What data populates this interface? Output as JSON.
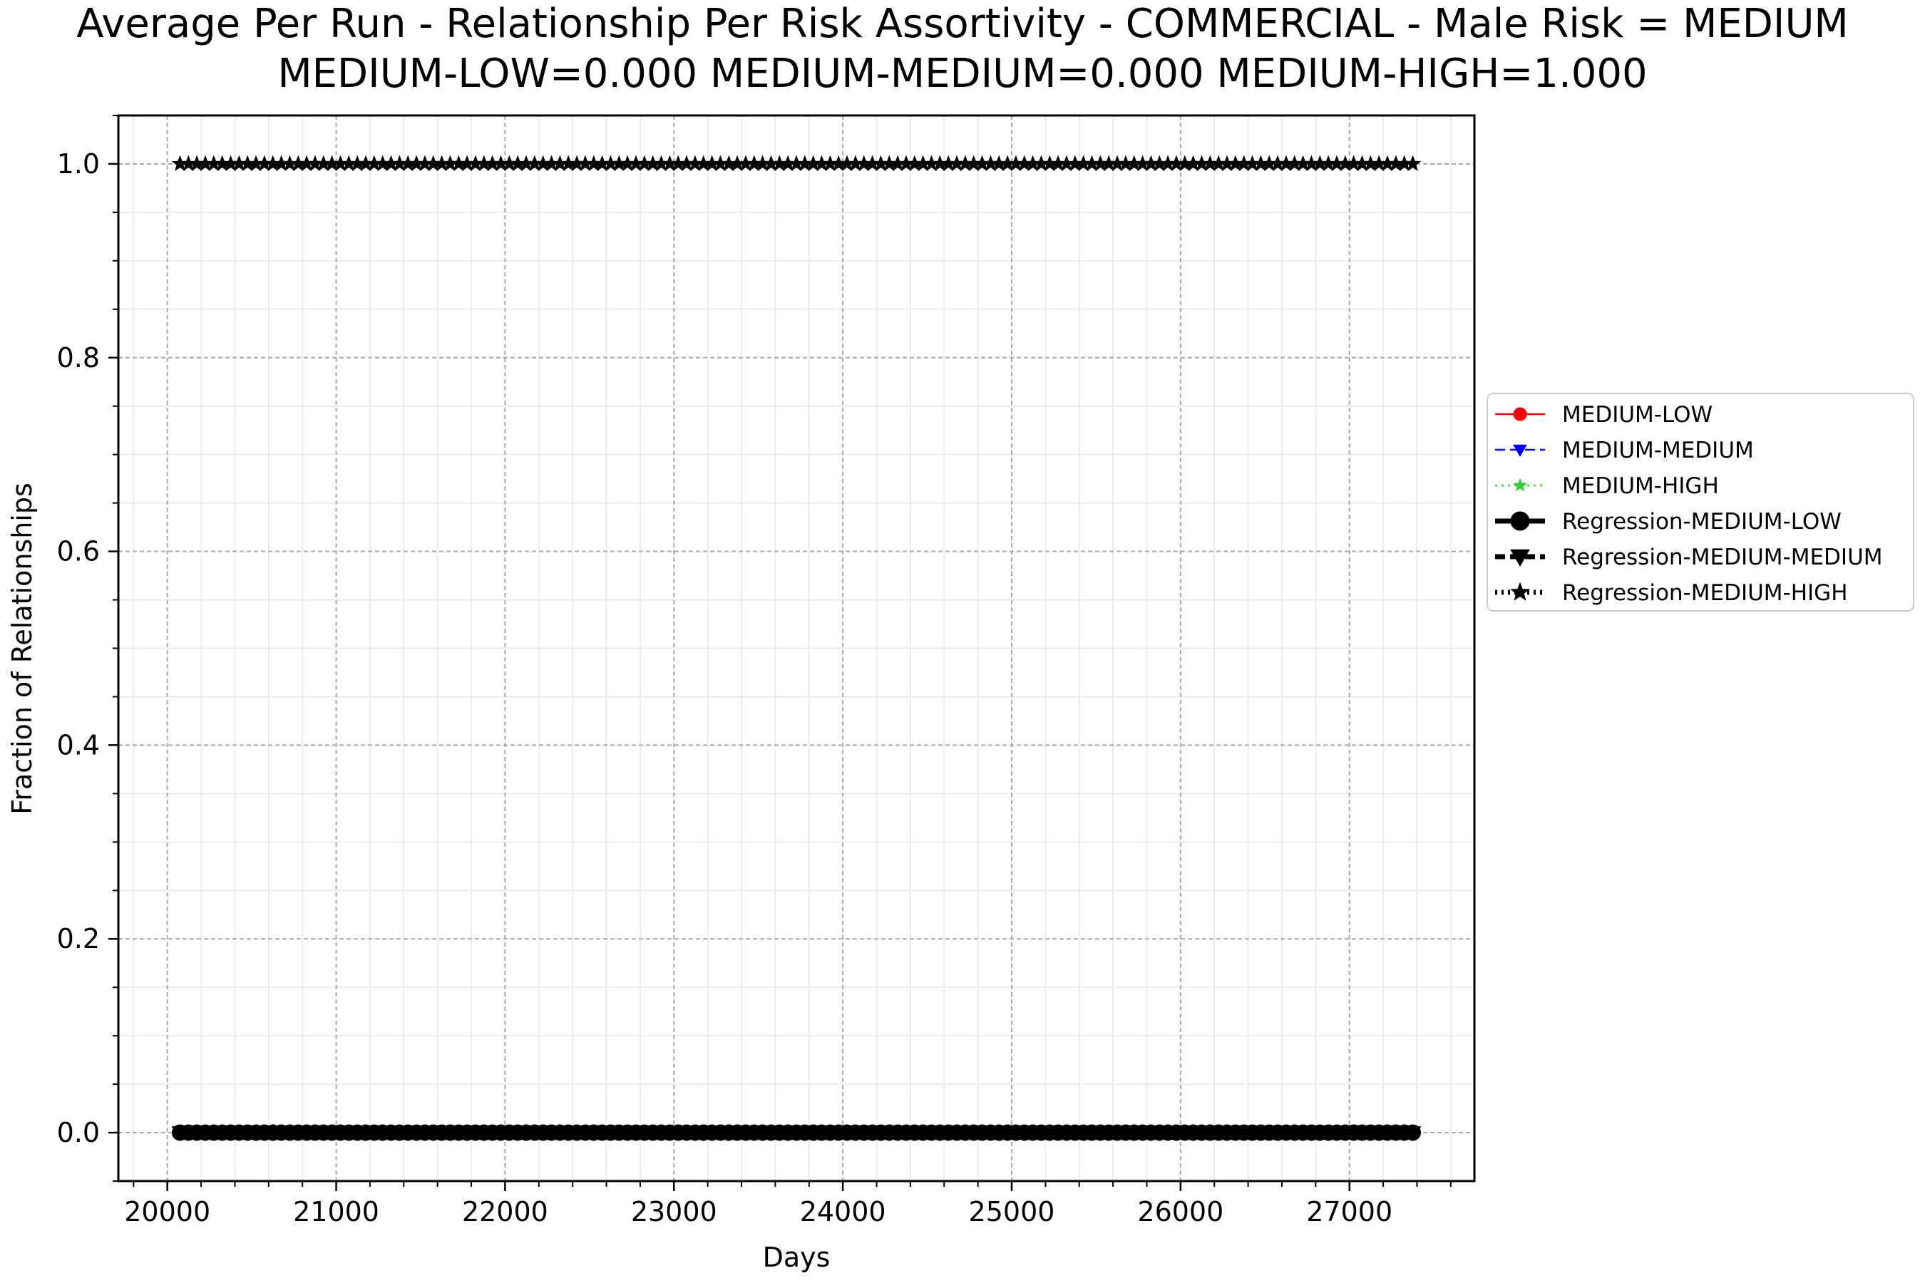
{
  "chart_data": {
    "type": "line",
    "title": "Average Per Run - Relationship Per Risk Assortivity - COMMERCIAL - Male Risk = MEDIUM",
    "subtitle": "MEDIUM-LOW=0.000 MEDIUM-MEDIUM=0.000 MEDIUM-HIGH=1.000",
    "xlabel": "Days",
    "ylabel": "Fraction of Relationships",
    "xlim": [
      19710,
      27740
    ],
    "ylim": [
      -0.05,
      1.05
    ],
    "xticks": [
      20000,
      21000,
      22000,
      23000,
      24000,
      25000,
      26000,
      27000
    ],
    "xtick_labels": [
      "20000",
      "21000",
      "22000",
      "23000",
      "24000",
      "25000",
      "26000",
      "27000"
    ],
    "yticks": [
      0.0,
      0.2,
      0.4,
      0.6,
      0.8,
      1.0
    ],
    "ytick_labels": [
      "0.0",
      "0.2",
      "0.4",
      "0.6",
      "0.8",
      "1.0"
    ],
    "grid": true,
    "legend_position": "outside-right",
    "x_start": 20075,
    "x_end": 27375,
    "x_step": 50,
    "series": [
      {
        "name": "MEDIUM-LOW",
        "color": "#ff0000",
        "marker": "circle",
        "linestyle": "solid",
        "base": 0.0,
        "deviations": []
      },
      {
        "name": "MEDIUM-MEDIUM",
        "color": "#0000ff",
        "marker": "triangle-down",
        "linestyle": "dashed",
        "base": 0.0,
        "deviations": [
          [
            20400,
            0.005
          ],
          [
            21450,
            0.005
          ],
          [
            21600,
            0.004
          ]
        ]
      },
      {
        "name": "MEDIUM-HIGH",
        "color": "#33cc33",
        "marker": "star",
        "linestyle": "dotted",
        "base": 1.0,
        "deviations": [
          [
            20400,
            0.995
          ],
          [
            21450,
            0.995
          ],
          [
            21600,
            0.996
          ]
        ]
      },
      {
        "name": "Regression-MEDIUM-LOW",
        "color": "#000000",
        "marker": "circle",
        "linestyle": "solid",
        "base": 0.0,
        "deviations": []
      },
      {
        "name": "Regression-MEDIUM-MEDIUM",
        "color": "#000000",
        "marker": "triangle-down",
        "linestyle": "dashed",
        "base": 0.0,
        "deviations": []
      },
      {
        "name": "Regression-MEDIUM-HIGH",
        "color": "#000000",
        "marker": "star",
        "linestyle": "dotted",
        "base": 1.0,
        "deviations": []
      }
    ]
  }
}
